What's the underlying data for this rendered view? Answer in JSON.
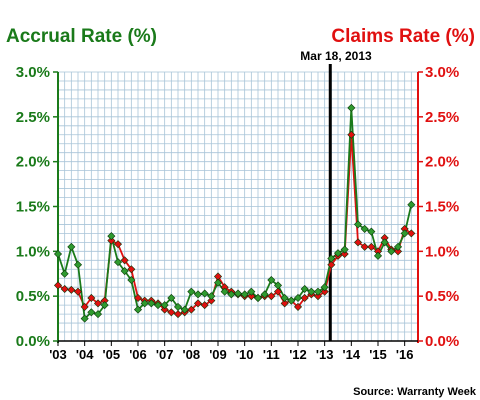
{
  "chart_data": {
    "type": "line",
    "left_title": "Accrual Rate (%)",
    "right_title": "Claims Rate (%)",
    "x_tick_labels": [
      "'03",
      "'04",
      "'05",
      "'06",
      "'07",
      "'08",
      "'09",
      "'10",
      "'11",
      "'12",
      "'13",
      "'14",
      "'15",
      "'16"
    ],
    "y_tick_labels": [
      "0.0%",
      "0.5%",
      "1.0%",
      "1.5%",
      "2.0%",
      "2.5%",
      "3.0%"
    ],
    "y_ticks": [
      0,
      0.5,
      1.0,
      1.5,
      2.0,
      2.5,
      3.0
    ],
    "ylim": [
      0,
      3.0
    ],
    "xlim": [
      2003.0,
      2016.5
    ],
    "grid": true,
    "annotation": {
      "label": "Mar 18, 2013",
      "x": 2013.21
    },
    "source": "Source: Warranty Week",
    "colors": {
      "accrual": "#1a7a1a",
      "accrual_marker": "#2f9a2f",
      "claims": "#e01010",
      "claims_marker": "#e01010",
      "grid": "#a8c4d8",
      "vline": "#000000"
    },
    "series": [
      {
        "name": "Accrual Rate (%)",
        "axis": "left",
        "x": [
          2003.0,
          2003.25,
          2003.5,
          2003.75,
          2004.0,
          2004.25,
          2004.5,
          2004.75,
          2005.0,
          2005.25,
          2005.5,
          2005.75,
          2006.0,
          2006.25,
          2006.5,
          2006.75,
          2007.0,
          2007.25,
          2007.5,
          2007.75,
          2008.0,
          2008.25,
          2008.5,
          2008.75,
          2009.0,
          2009.25,
          2009.5,
          2009.75,
          2010.0,
          2010.25,
          2010.5,
          2010.75,
          2011.0,
          2011.25,
          2011.5,
          2011.75,
          2012.0,
          2012.25,
          2012.5,
          2012.75,
          2013.0,
          2013.25,
          2013.5,
          2013.75,
          2014.0,
          2014.25,
          2014.5,
          2014.75,
          2015.0,
          2015.25,
          2015.5,
          2015.75,
          2016.0,
          2016.25
        ],
        "values": [
          0.97,
          0.75,
          1.05,
          0.85,
          0.25,
          0.32,
          0.3,
          0.4,
          1.17,
          0.88,
          0.78,
          0.68,
          0.35,
          0.42,
          0.42,
          0.4,
          0.4,
          0.48,
          0.38,
          0.35,
          0.55,
          0.52,
          0.53,
          0.5,
          0.65,
          0.55,
          0.52,
          0.53,
          0.52,
          0.55,
          0.48,
          0.52,
          0.68,
          0.62,
          0.48,
          0.45,
          0.48,
          0.58,
          0.55,
          0.55,
          0.6,
          0.92,
          0.98,
          1.02,
          2.6,
          1.3,
          1.25,
          1.22,
          0.95,
          1.1,
          1.0,
          1.05,
          1.2,
          1.52
        ]
      },
      {
        "name": "Claims Rate (%)",
        "axis": "right",
        "x": [
          2003.0,
          2003.25,
          2003.5,
          2003.75,
          2004.0,
          2004.25,
          2004.5,
          2004.75,
          2005.0,
          2005.25,
          2005.5,
          2005.75,
          2006.0,
          2006.25,
          2006.5,
          2006.75,
          2007.0,
          2007.25,
          2007.5,
          2007.75,
          2008.0,
          2008.25,
          2008.5,
          2008.75,
          2009.0,
          2009.25,
          2009.5,
          2009.75,
          2010.0,
          2010.25,
          2010.5,
          2010.75,
          2011.0,
          2011.25,
          2011.5,
          2011.75,
          2012.0,
          2012.25,
          2012.5,
          2012.75,
          2013.0,
          2013.25,
          2013.5,
          2013.75,
          2014.0,
          2014.25,
          2014.5,
          2014.75,
          2015.0,
          2015.25,
          2015.5,
          2015.75,
          2016.0,
          2016.25
        ],
        "values": [
          0.62,
          0.58,
          0.57,
          0.55,
          0.38,
          0.48,
          0.42,
          0.45,
          1.12,
          1.08,
          0.9,
          0.8,
          0.48,
          0.45,
          0.45,
          0.42,
          0.35,
          0.32,
          0.3,
          0.32,
          0.35,
          0.42,
          0.4,
          0.45,
          0.72,
          0.6,
          0.55,
          0.52,
          0.5,
          0.5,
          0.48,
          0.5,
          0.5,
          0.55,
          0.42,
          0.45,
          0.38,
          0.48,
          0.52,
          0.5,
          0.55,
          0.85,
          0.95,
          0.97,
          2.3,
          1.1,
          1.05,
          1.05,
          1.0,
          1.15,
          1.02,
          1.0,
          1.25,
          1.2
        ]
      }
    ]
  }
}
